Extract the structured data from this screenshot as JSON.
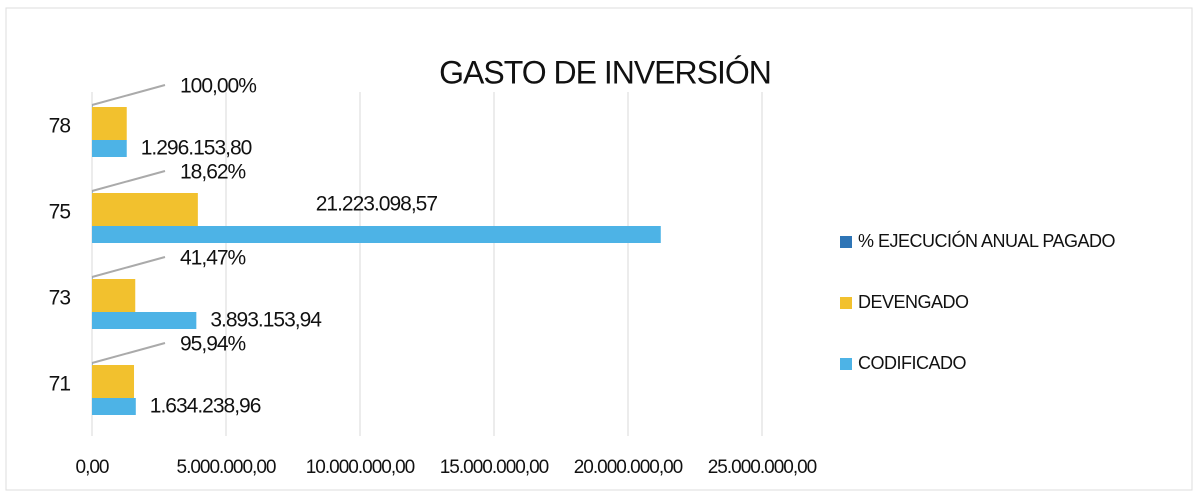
{
  "chart_data": {
    "type": "bar",
    "orientation": "horizontal",
    "title": "GASTO DE INVERSIÓN",
    "categories": [
      "78",
      "75",
      "73",
      "71"
    ],
    "series": [
      {
        "name": "% EJECUCIÓN ANUAL PAGADO",
        "color": "#2e75b6",
        "values": [
          100,
          18.62,
          41.47,
          95.94
        ],
        "value_labels": [
          "100,00%",
          "18,62%",
          "41,47%",
          "95,94%"
        ]
      },
      {
        "name": "DEVENGADO",
        "color": "#f2c12e",
        "values": [
          1296153.8,
          3950000,
          1614000,
          1568000
        ]
      },
      {
        "name": "CODIFICADO",
        "color": "#4db3e6",
        "values": [
          1296153.8,
          21223098.57,
          3893153.94,
          1634238.96
        ],
        "value_labels": [
          "1.296.153,80",
          "21.223.098,57",
          "3.893.153,94",
          "1.634.238,96"
        ]
      }
    ],
    "xlim": [
      0,
      25000000
    ],
    "xticks": [
      {
        "value": 0,
        "label": "0,00"
      },
      {
        "value": 5000000,
        "label": "5.000.000,00"
      },
      {
        "value": 10000000,
        "label": "10.000.000,00"
      },
      {
        "value": 15000000,
        "label": "15.000.000,00"
      },
      {
        "value": 20000000,
        "label": "20.000.000,00"
      },
      {
        "value": 25000000,
        "label": "25.000.000,00"
      }
    ],
    "grid": true,
    "legend": "right"
  }
}
